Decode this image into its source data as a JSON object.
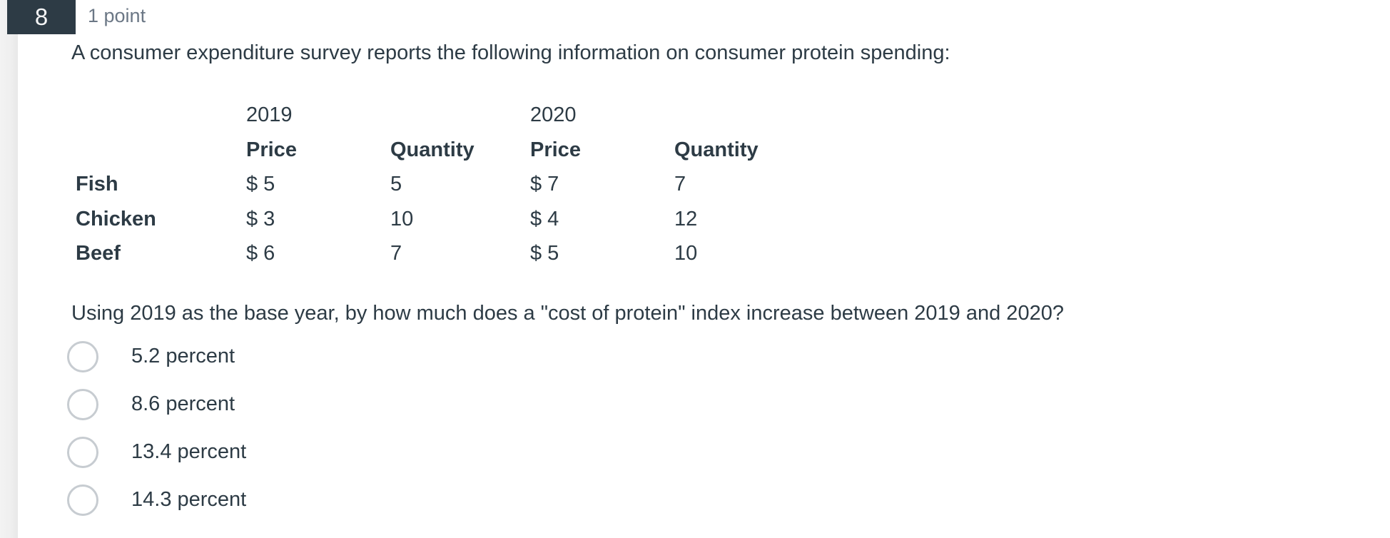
{
  "question": {
    "number": "8",
    "points_label": "1 point",
    "prompt": "A consumer expenditure survey reports the following information on consumer protein spending:",
    "table": {
      "year_headers": [
        "2019",
        "2020"
      ],
      "col_headers": [
        "Price",
        "Quantity",
        "Price",
        "Quantity"
      ],
      "rows": [
        {
          "label": "Fish",
          "values": [
            "$ 5",
            "5",
            "$ 7",
            "7"
          ]
        },
        {
          "label": "Chicken",
          "values": [
            "$ 3",
            "10",
            "$ 4",
            "12"
          ]
        },
        {
          "label": "Beef",
          "values": [
            "$ 6",
            "7",
            "$ 5",
            "10"
          ]
        }
      ]
    },
    "sub_prompt": "Using 2019 as the base year, by how much does a \"cost of protein\" index increase between 2019 and 2020?",
    "options": [
      {
        "label": "5.2 percent",
        "selected": false
      },
      {
        "label": "8.6 percent",
        "selected": false
      },
      {
        "label": "13.4 percent",
        "selected": false
      },
      {
        "label": "14.3 percent",
        "selected": false
      }
    ]
  },
  "colors": {
    "badge_bg": "#2d3b45",
    "badge_text": "#f5f6f7",
    "points_text": "#6b7785",
    "body_text": "#2d3b45",
    "radio_border": "#c7ccd1"
  }
}
